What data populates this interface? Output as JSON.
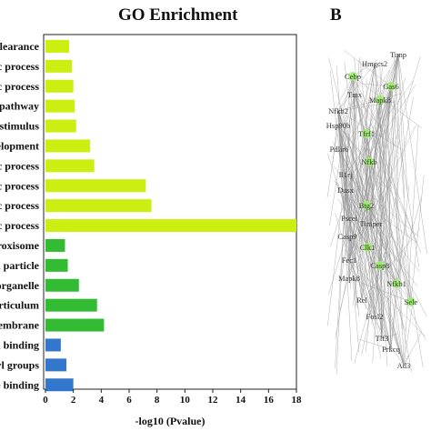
{
  "header": {
    "chart_title": "GO Enrichment",
    "panel_b_label": "B"
  },
  "chart_data": {
    "type": "bar",
    "orientation": "horizontal",
    "title": "GO Enrichment",
    "xlabel": "-log10 (Pvalue)",
    "ylabel": "",
    "xlim": [
      0,
      18
    ],
    "xticks": [
      0,
      2,
      4,
      6,
      8,
      10,
      12,
      14,
      16,
      18
    ],
    "grid": false,
    "categories": [
      "clearance",
      "c process",
      "c process",
      "pathway",
      "stimulus",
      "velopment",
      "c process",
      "c process",
      "c process",
      "c process",
      "roxisome",
      "d particle",
      "organelle",
      "rticulum",
      "embrane",
      "n binding",
      "yl groups",
      "e binding"
    ],
    "values": [
      1.7,
      1.9,
      2.0,
      2.1,
      2.2,
      3.2,
      3.5,
      7.2,
      7.6,
      18.0,
      1.4,
      1.6,
      2.4,
      3.7,
      4.2,
      1.1,
      1.5,
      2.0
    ],
    "bar_colors": [
      "#ccee11",
      "#ccee11",
      "#ccee11",
      "#ccee11",
      "#ccee11",
      "#ccee11",
      "#ccee11",
      "#ccee11",
      "#ccee11",
      "#ccee11",
      "#33bb33",
      "#33bb33",
      "#33bb33",
      "#33bb33",
      "#33bb33",
      "#3377cc",
      "#3377cc",
      "#3377cc"
    ]
  },
  "network": {
    "node_color": "#99ee66",
    "nodes": [
      "Timp",
      "Hmgcs2",
      "Cebp",
      "Gas6",
      "Tmx",
      "Mapk8",
      "Nfkb2",
      "Hsp90b",
      "Tfrf1",
      "Pdlir6",
      "Nfkb",
      "Il1rj",
      "Dusx",
      "Btg2",
      "Pscei",
      "Timper",
      "Casp9",
      "Clk1",
      "Fec1",
      "Mapk8",
      "Casp8",
      "Nfkb1",
      "Rel",
      "Fosl2",
      "Sele",
      "Tlf3",
      "Prkcq",
      "Ad3"
    ]
  }
}
